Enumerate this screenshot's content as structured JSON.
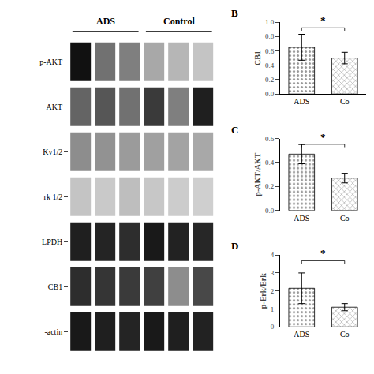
{
  "chart_data": [
    {
      "type": "heatmap",
      "categories": [
        "p-AKT",
        "AKT",
        "Kv1/2",
        "rk 1/2",
        "LPDH",
        "CB1",
        "-actin"
      ],
      "values": [
        [
          0.85,
          0.5,
          0.45,
          0.3,
          0.25,
          0.2
        ],
        [
          0.55,
          0.6,
          0.5,
          0.7,
          0.45,
          0.8
        ],
        [
          0.4,
          0.38,
          0.35,
          0.33,
          0.32,
          0.3
        ],
        [
          0.2,
          0.18,
          0.22,
          0.19,
          0.17,
          0.16
        ],
        [
          0.8,
          0.78,
          0.75,
          0.82,
          0.79,
          0.77
        ],
        [
          0.75,
          0.72,
          0.7,
          0.68,
          0.4,
          0.65
        ],
        [
          0.82,
          0.8,
          0.78,
          0.82,
          0.8,
          0.79
        ]
      ],
      "annotations": [
        "ADS",
        "Control"
      ],
      "tick_labels": "y",
      "grid": false
    },
    {
      "type": "bar",
      "title": "B",
      "ylabel": "CB1",
      "categories": [
        "ADS",
        "Co"
      ],
      "values": [
        0.65,
        0.5
      ],
      "errors": [
        0.18,
        0.08
      ],
      "colors": [
        "#999999",
        "#bbbbbb"
      ],
      "ylim": [
        0,
        1.0
      ],
      "yticks": [
        {
          "value": 0.0,
          "label": "0.0"
        },
        0.2,
        0.4,
        0.6,
        0.8,
        {
          "value": 1.0,
          "label": "1.0"
        }
      ],
      "annotations": [
        "*"
      ],
      "grid": false
    },
    {
      "type": "bar",
      "title": "C",
      "ylabel": "p-AKT/AKT",
      "categories": [
        "ADS",
        "Co"
      ],
      "values": [
        0.47,
        0.27
      ],
      "errors": [
        0.08,
        0.04
      ],
      "colors": [
        "#999999",
        "#bbbbbb"
      ],
      "ylim": [
        0,
        0.6
      ],
      "yticks": [
        {
          "value": 0.0,
          "label": "0.0"
        },
        0.2,
        0.4,
        0.6
      ],
      "annotations": [
        "*"
      ],
      "grid": false
    },
    {
      "type": "bar",
      "title": "D",
      "ylabel": "p-Erk/Erk",
      "categories": [
        "ADS",
        "Co"
      ],
      "values": [
        2.15,
        1.1
      ],
      "errors": [
        0.85,
        0.2
      ],
      "colors": [
        "#999999",
        "#bbbbbb"
      ],
      "ylim": [
        0,
        4
      ],
      "yticks": [
        0,
        1,
        2,
        3,
        4
      ],
      "annotations": [
        "*"
      ],
      "grid": false
    }
  ]
}
